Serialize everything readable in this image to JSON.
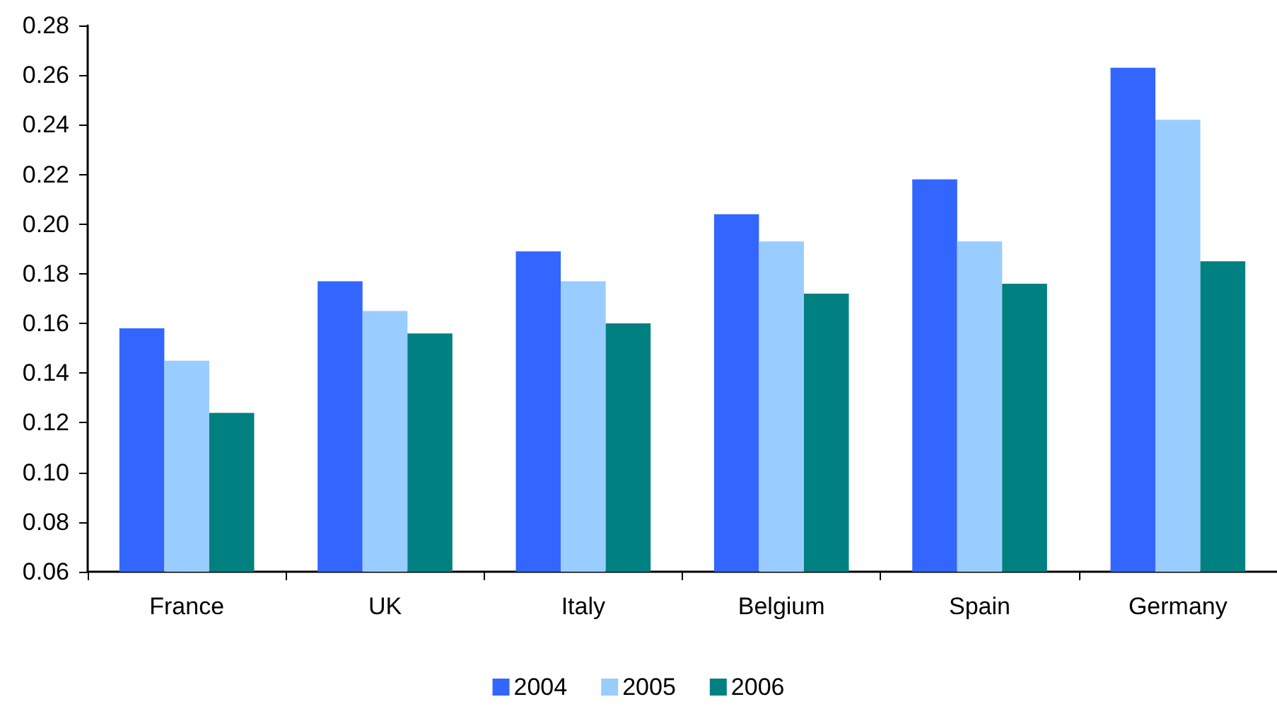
{
  "chart_data": {
    "type": "bar",
    "categories": [
      "France",
      "UK",
      "Italy",
      "Belgium",
      "Spain",
      "Germany"
    ],
    "series": [
      {
        "name": "2004",
        "color": "#3366ff",
        "values": [
          0.158,
          0.177,
          0.189,
          0.204,
          0.218,
          0.263
        ]
      },
      {
        "name": "2005",
        "color": "#99ccff",
        "values": [
          0.145,
          0.165,
          0.177,
          0.193,
          0.193,
          0.242
        ]
      },
      {
        "name": "2006",
        "color": "#008080",
        "values": [
          0.124,
          0.156,
          0.16,
          0.172,
          0.176,
          0.185
        ]
      }
    ],
    "ylim": [
      0.06,
      0.28
    ],
    "yticks": [
      0.06,
      0.08,
      {
        "value": 0.1,
        "label": "0.10"
      },
      0.12,
      0.14,
      0.16,
      0.18,
      {
        "value": 0.2,
        "label": "0.20"
      },
      0.22,
      0.24,
      0.26,
      0.28
    ],
    "grid": false,
    "legend": "bottom"
  }
}
